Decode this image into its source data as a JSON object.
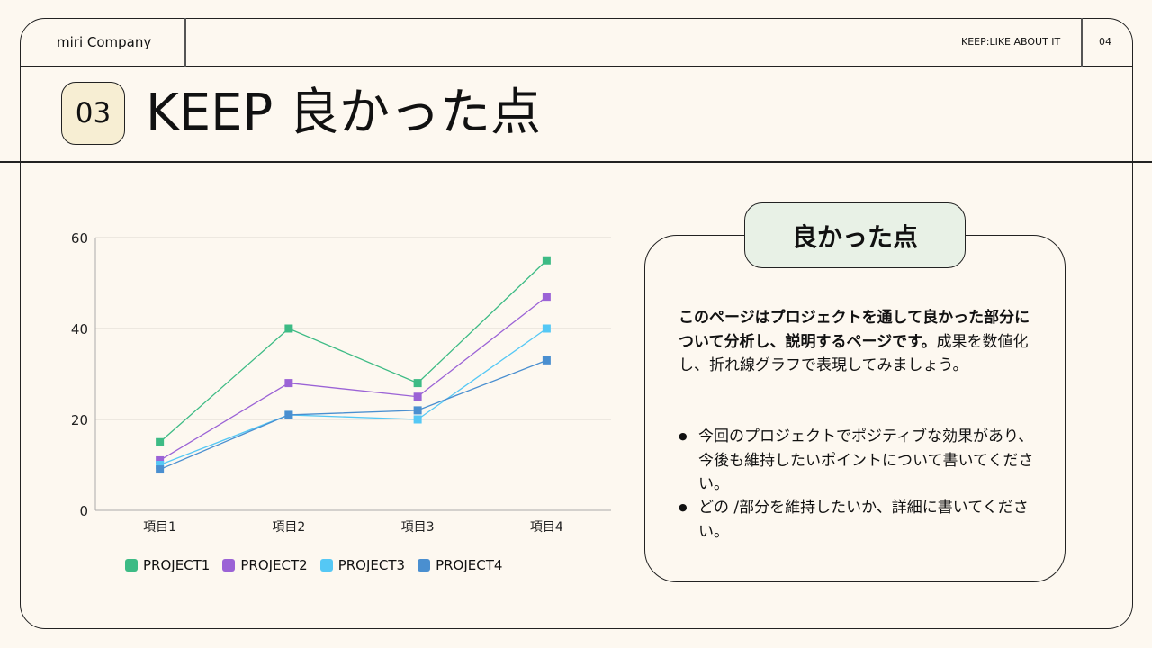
{
  "header": {
    "logo": "miri Company",
    "section_label": "KEEP:LIKE ABOUT IT",
    "page_number": "04"
  },
  "title": {
    "number": "03",
    "text": "KEEP 良かった点"
  },
  "card": {
    "heading": "良かった点",
    "paragraph_bold": "このページはプロジェクトを通して良かった部分について分析し、説明するページです。",
    "paragraph": "成果を数値化し、折れ線グラフで表現してみましょう。",
    "bullets": [
      "今回のプロジェクトでポジティブな効果があり、今後も維持したいポイントについて書いてください。",
      "どの /部分を維持したいか、詳細に書いてください。"
    ]
  },
  "chart_data": {
    "type": "line",
    "categories": [
      "項目1",
      "項目2",
      "項目3",
      "項目4"
    ],
    "ylim": [
      0,
      60
    ],
    "yticks": [
      0,
      20,
      40,
      60
    ],
    "grid": true,
    "legend": "bottom",
    "series": [
      {
        "name": "PROJECT1",
        "color": "#3dbb85",
        "values": [
          15,
          40,
          28,
          55
        ]
      },
      {
        "name": "PROJECT2",
        "color": "#9b63d6",
        "values": [
          11,
          28,
          25,
          47
        ]
      },
      {
        "name": "PROJECT3",
        "color": "#55c8f5",
        "values": [
          10,
          21,
          20,
          40
        ]
      },
      {
        "name": "PROJECT4",
        "color": "#4a8fd0",
        "values": [
          9,
          21,
          22,
          33
        ]
      }
    ]
  }
}
